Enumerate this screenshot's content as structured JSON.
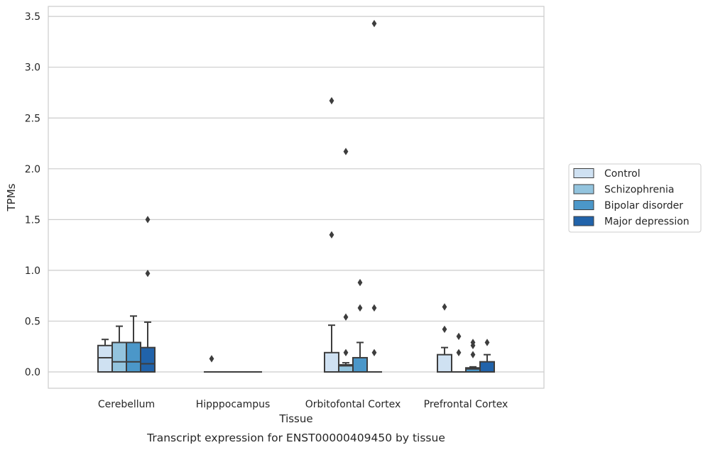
{
  "chart_data": {
    "type": "box",
    "xlabel": "Tissue",
    "ylabel": "TPMs",
    "caption": "Transcript expression for ENST00000409450 by tissue",
    "ylim": [
      -0.17,
      3.6
    ],
    "yticks": [
      "0.0",
      "0.5",
      "1.0",
      "1.5",
      "2.0",
      "2.5",
      "3.0",
      "3.5"
    ],
    "grid": "horizontal",
    "legend_position": "right",
    "categories": [
      "Cerebellum",
      "Hipppocampus",
      "Orbitofontal Cortex",
      "Prefrontal Cortex"
    ],
    "series": [
      {
        "name": "Control",
        "color": "#cfe1f2",
        "boxes": [
          {
            "q1": 0.0,
            "median": 0.14,
            "q3": 0.26,
            "whisker_low": 0.0,
            "whisker_high": 0.32,
            "outliers": []
          },
          {
            "q1": 0.0,
            "median": 0.0,
            "q3": 0.0,
            "whisker_low": 0.0,
            "whisker_high": 0.0,
            "outliers": [
              0.13
            ]
          },
          {
            "q1": 0.0,
            "median": 0.0,
            "q3": 0.19,
            "whisker_low": 0.0,
            "whisker_high": 0.46,
            "outliers": [
              1.35,
              2.67
            ]
          },
          {
            "q1": 0.0,
            "median": 0.0,
            "q3": 0.17,
            "whisker_low": 0.0,
            "whisker_high": 0.24,
            "outliers": [
              0.42,
              0.64
            ]
          }
        ]
      },
      {
        "name": "Schizophrenia",
        "color": "#93c4de",
        "boxes": [
          {
            "q1": 0.0,
            "median": 0.1,
            "q3": 0.29,
            "whisker_low": 0.0,
            "whisker_high": 0.45,
            "outliers": []
          },
          {
            "q1": 0.0,
            "median": 0.0,
            "q3": 0.0,
            "whisker_low": 0.0,
            "whisker_high": 0.0,
            "outliers": []
          },
          {
            "q1": 0.0,
            "median": 0.06,
            "q3": 0.07,
            "whisker_low": 0.0,
            "whisker_high": 0.09,
            "outliers": [
              0.19,
              0.54,
              2.17
            ]
          },
          {
            "q1": 0.0,
            "median": 0.0,
            "q3": 0.0,
            "whisker_low": 0.0,
            "whisker_high": 0.0,
            "outliers": [
              0.19,
              0.35
            ]
          }
        ]
      },
      {
        "name": "Bipolar disorder",
        "color": "#4b97c9",
        "boxes": [
          {
            "q1": 0.0,
            "median": 0.1,
            "q3": 0.29,
            "whisker_low": 0.0,
            "whisker_high": 0.55,
            "outliers": []
          },
          {
            "q1": 0.0,
            "median": 0.0,
            "q3": 0.0,
            "whisker_low": 0.0,
            "whisker_high": 0.0,
            "outliers": []
          },
          {
            "q1": 0.0,
            "median": 0.0,
            "q3": 0.14,
            "whisker_low": 0.0,
            "whisker_high": 0.29,
            "outliers": [
              0.63,
              0.88
            ]
          },
          {
            "q1": 0.0,
            "median": 0.03,
            "q3": 0.04,
            "whisker_low": 0.0,
            "whisker_high": 0.05,
            "outliers": [
              0.17,
              0.26,
              0.29
            ]
          }
        ]
      },
      {
        "name": "Major depression",
        "color": "#2163aa",
        "boxes": [
          {
            "q1": 0.0,
            "median": 0.08,
            "q3": 0.24,
            "whisker_low": 0.0,
            "whisker_high": 0.49,
            "outliers": [
              0.97,
              1.5
            ]
          },
          {
            "q1": 0.0,
            "median": 0.0,
            "q3": 0.0,
            "whisker_low": 0.0,
            "whisker_high": 0.0,
            "outliers": []
          },
          {
            "q1": 0.0,
            "median": 0.0,
            "q3": 0.0,
            "whisker_low": 0.0,
            "whisker_high": 0.0,
            "outliers": [
              0.19,
              0.63,
              3.43
            ]
          },
          {
            "q1": 0.0,
            "median": 0.0,
            "q3": 0.1,
            "whisker_low": 0.0,
            "whisker_high": 0.17,
            "outliers": [
              0.29
            ]
          }
        ]
      }
    ]
  }
}
